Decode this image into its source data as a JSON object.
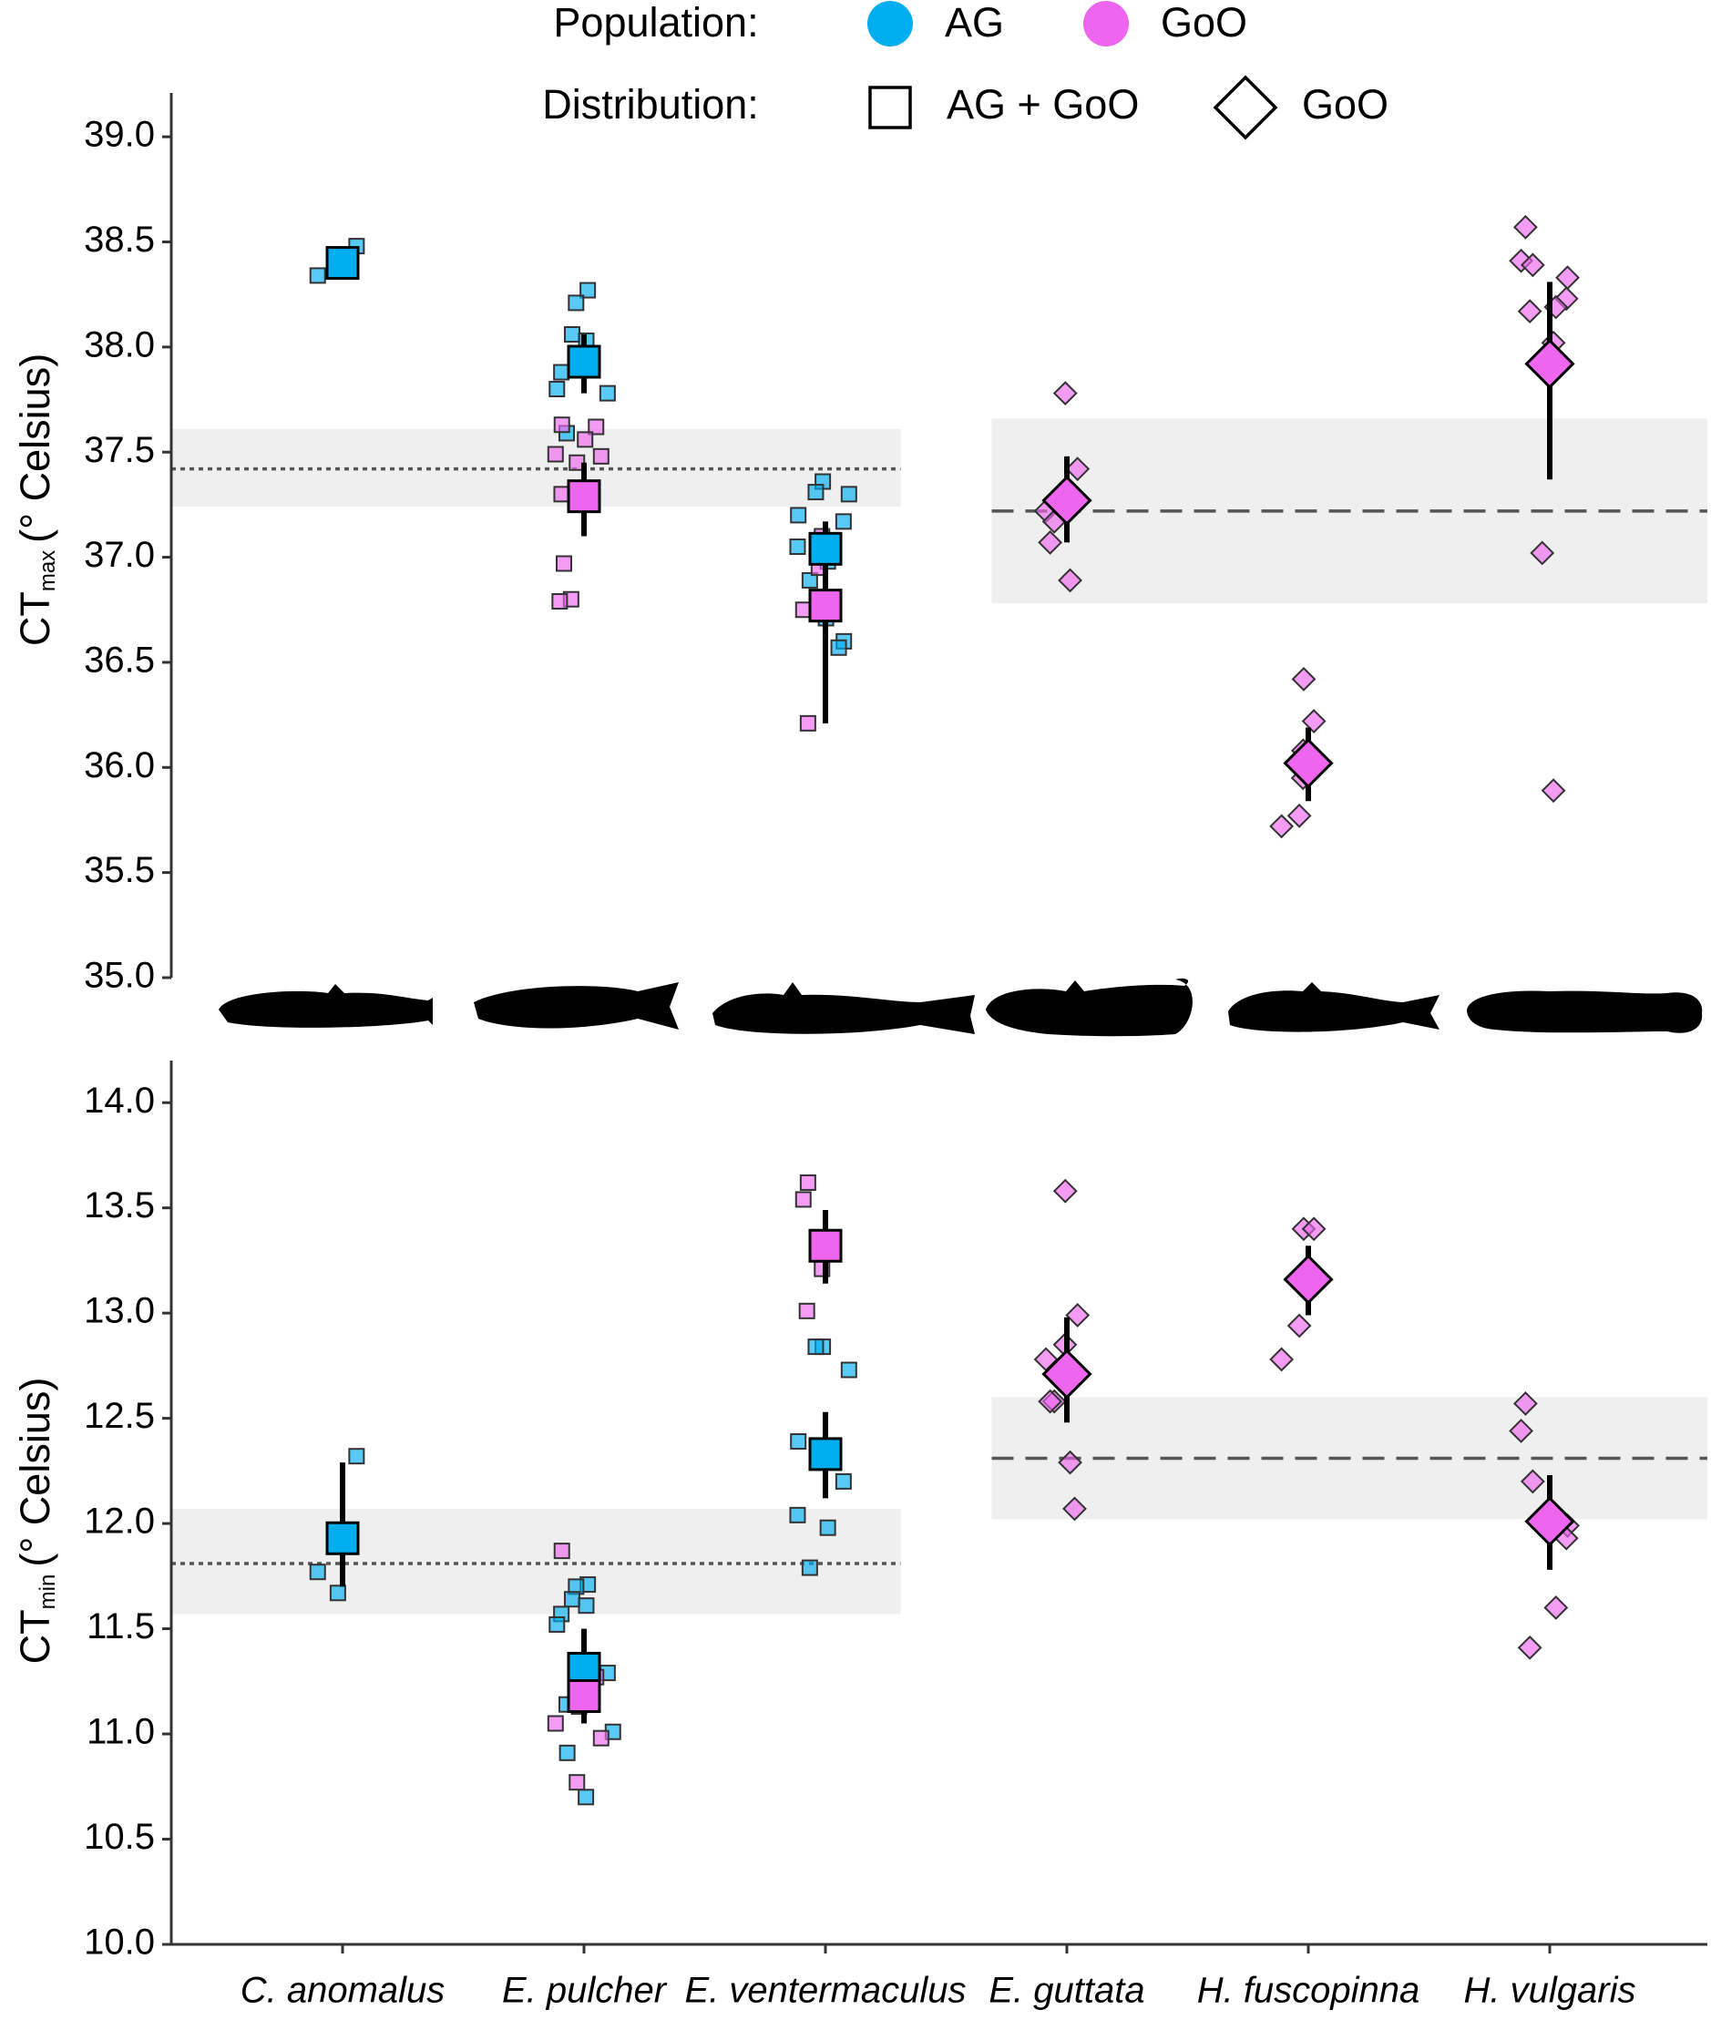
{
  "legend": {
    "population_label": "Population:",
    "population": [
      {
        "name": "AG",
        "color": "#00aeef"
      },
      {
        "name": "GoO",
        "color": "#ee66ee"
      }
    ],
    "distribution_label": "Distribution:",
    "distribution": [
      {
        "name": "AG + GoO",
        "marker": "square"
      },
      {
        "name": "GoO",
        "marker": "diamond"
      }
    ]
  },
  "categories": [
    "C. anomalus",
    "E. pulcher",
    "E. ventermaculus",
    "E. guttata",
    "H. fuscopinna",
    "H. vulgaris"
  ],
  "markers": [
    "square",
    "square",
    "square",
    "diamond",
    "diamond",
    "diamond"
  ],
  "chart_data": [
    {
      "type": "dot",
      "y_label": {
        "main": "CT",
        "sub": "max",
        "unit": "(° Celsius)"
      },
      "ylim": [
        35,
        39.2
      ],
      "yticks": [
        {
          "value": 35,
          "label": "35.0"
        },
        35.5,
        {
          "value": 36,
          "label": "36.0"
        },
        36.5,
        {
          "value": 37,
          "label": "37.0"
        },
        37.5,
        {
          "value": 38,
          "label": "38.0"
        },
        38.5,
        {
          "value": 39,
          "label": "39.0"
        }
      ],
      "reference": [
        {
          "mean": 37.42,
          "lower": 37.24,
          "upper": 37.61,
          "style": "dotted"
        },
        {
          "mean": 37.22,
          "lower": 36.78,
          "upper": 37.66,
          "style": "dashed"
        }
      ],
      "series": [
        {
          "values": [
            38.4,
            37.93,
            37.04,
            null,
            null,
            null
          ],
          "lower": [
            38.33,
            37.78,
            36.87,
            null,
            null,
            null
          ],
          "upper": [
            38.47,
            38.06,
            37.17,
            null,
            null,
            null
          ],
          "points": [
            [
              38.48,
              38.34,
              38.4
            ],
            [
              38.27,
              38.21,
              38.06,
              38.03,
              37.88,
              37.8,
              37.78,
              37.59
            ],
            [
              37.36,
              37.31,
              37.3,
              37.2,
              37.17,
              37.05,
              36.98,
              36.89,
              36.71,
              36.6,
              36.57
            ],
            [],
            [],
            []
          ]
        },
        {
          "values": [
            null,
            37.29,
            36.77,
            37.27,
            36.02,
            37.92
          ],
          "lower": [
            null,
            37.1,
            36.21,
            37.07,
            35.84,
            37.37
          ],
          "upper": [
            null,
            37.45,
            37.0,
            37.48,
            36.19,
            38.31
          ],
          "points": [
            [],
            [
              37.63,
              37.62,
              37.56,
              37.49,
              37.48,
              37.45,
              37.3,
              36.97,
              36.8,
              36.79
            ],
            [
              36.21,
              36.75,
              36.95,
              37.1
            ],
            [
              37.78,
              37.42,
              37.27,
              37.22,
              37.17,
              37.07,
              36.89
            ],
            [
              36.42,
              36.22,
              36.08,
              35.95,
              35.77,
              35.72
            ],
            [
              38.57,
              38.41,
              38.39,
              38.33,
              38.23,
              38.19,
              38.17,
              38.02,
              37.02,
              35.89
            ]
          ]
        }
      ]
    },
    {
      "type": "dot",
      "y_label": {
        "main": "CT",
        "sub": "min",
        "unit": "(° Celsius)"
      },
      "ylim": [
        10,
        14.2
      ],
      "yticks": [
        {
          "value": 10,
          "label": "10.0"
        },
        10.5,
        {
          "value": 11,
          "label": "11.0"
        },
        11.5,
        {
          "value": 12,
          "label": "12.0"
        },
        12.5,
        {
          "value": 13,
          "label": "13.0"
        },
        13.5,
        {
          "value": 14,
          "label": "14.0"
        }
      ],
      "reference": [
        {
          "mean": 11.81,
          "lower": 11.57,
          "upper": 12.07,
          "style": "dotted"
        },
        {
          "mean": 12.31,
          "lower": 12.02,
          "upper": 12.6,
          "style": "dashed"
        }
      ],
      "series": [
        {
          "values": [
            11.93,
            11.31,
            12.33,
            null,
            null,
            null
          ],
          "lower": [
            11.7,
            11.12,
            12.12,
            null,
            null,
            null
          ],
          "upper": [
            12.29,
            11.5,
            12.53,
            null,
            null,
            null
          ],
          "points": [
            [
              12.32,
              11.77,
              11.67
            ],
            [
              11.71,
              11.7,
              11.64,
              11.61,
              11.57,
              11.52,
              11.29,
              11.14,
              11.13,
              11.01,
              10.91,
              10.7
            ],
            [
              12.84,
              12.84,
              12.73,
              12.39,
              12.2,
              12.04,
              11.98,
              11.79
            ],
            [],
            [],
            []
          ]
        },
        {
          "values": [
            null,
            11.18,
            13.32,
            12.71,
            13.16,
            12.01
          ],
          "lower": [
            null,
            11.05,
            13.14,
            12.48,
            12.99,
            11.78
          ],
          "upper": [
            null,
            11.3,
            13.49,
            12.98,
            13.32,
            12.23
          ],
          "points": [
            [],
            [
              11.87,
              11.27,
              11.2,
              11.05,
              10.98,
              10.77
            ],
            [
              13.62,
              13.54,
              13.31,
              13.21,
              13.01
            ],
            [
              13.58,
              12.99,
              12.85,
              12.78,
              12.58,
              12.58,
              12.29,
              12.07
            ],
            [
              13.4,
              13.4,
              13.17,
              13.15,
              12.94,
              12.78
            ],
            [
              12.57,
              12.44,
              12.2,
              11.99,
              11.93,
              11.6,
              11.41
            ]
          ]
        }
      ]
    }
  ]
}
